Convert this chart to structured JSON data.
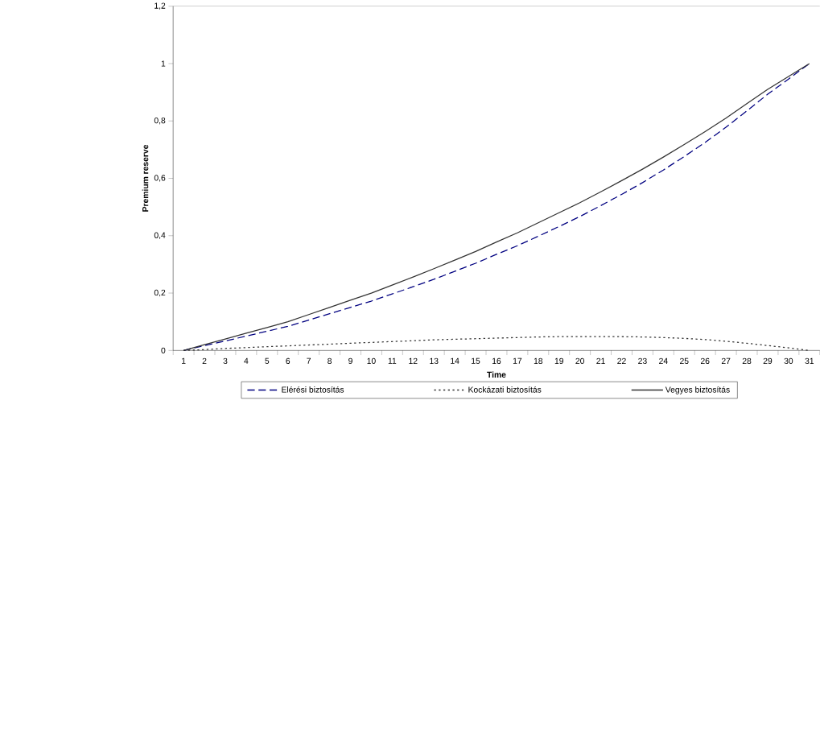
{
  "chart_data": {
    "type": "line",
    "xlabel": "Time",
    "ylabel": "Premium reserve",
    "categories": [
      "1",
      "2",
      "3",
      "4",
      "5",
      "6",
      "7",
      "8",
      "9",
      "10",
      "11",
      "12",
      "13",
      "14",
      "15",
      "16",
      "17",
      "18",
      "19",
      "20",
      "21",
      "22",
      "23",
      "24",
      "25",
      "26",
      "27",
      "28",
      "29",
      "30",
      "31"
    ],
    "series": [
      {
        "name": "Elérési biztosítás",
        "color": "#000080",
        "line_style": "dashed",
        "values": [
          0,
          0.017,
          0.033,
          0.05,
          0.067,
          0.084,
          0.106,
          0.128,
          0.15,
          0.172,
          0.197,
          0.222,
          0.248,
          0.276,
          0.304,
          0.335,
          0.365,
          0.398,
          0.432,
          0.467,
          0.505,
          0.544,
          0.585,
          0.629,
          0.676,
          0.725,
          0.778,
          0.835,
          0.893,
          0.946,
          1.0
        ]
      },
      {
        "name": "Kockázati biztosítás",
        "color": "#333333",
        "line_style": "dotted",
        "values": [
          0,
          0.003,
          0.007,
          0.01,
          0.013,
          0.016,
          0.019,
          0.022,
          0.025,
          0.028,
          0.031,
          0.034,
          0.037,
          0.039,
          0.041,
          0.043,
          0.045,
          0.047,
          0.048,
          0.048,
          0.048,
          0.048,
          0.047,
          0.045,
          0.042,
          0.038,
          0.032,
          0.025,
          0.017,
          0.009,
          0
        ]
      },
      {
        "name": "Vegyes biztosítás",
        "color": "#333333",
        "line_style": "solid",
        "values": [
          0,
          0.02,
          0.04,
          0.06,
          0.08,
          0.1,
          0.125,
          0.15,
          0.175,
          0.2,
          0.228,
          0.256,
          0.285,
          0.315,
          0.345,
          0.378,
          0.41,
          0.445,
          0.48,
          0.515,
          0.553,
          0.592,
          0.632,
          0.674,
          0.718,
          0.763,
          0.81,
          0.86,
          0.91,
          0.955,
          1.0
        ]
      }
    ],
    "ylim": [
      0,
      1.2
    ],
    "yticks": [
      0,
      {
        "value": 0.2,
        "label": "0,2"
      },
      {
        "value": 0.4,
        "label": "0,4"
      },
      {
        "value": 0.6,
        "label": "0,6"
      },
      {
        "value": 0.8,
        "label": "0,8"
      },
      1,
      {
        "value": 1.2,
        "label": "1,2"
      }
    ],
    "legend": "bottom",
    "marker": "none"
  }
}
